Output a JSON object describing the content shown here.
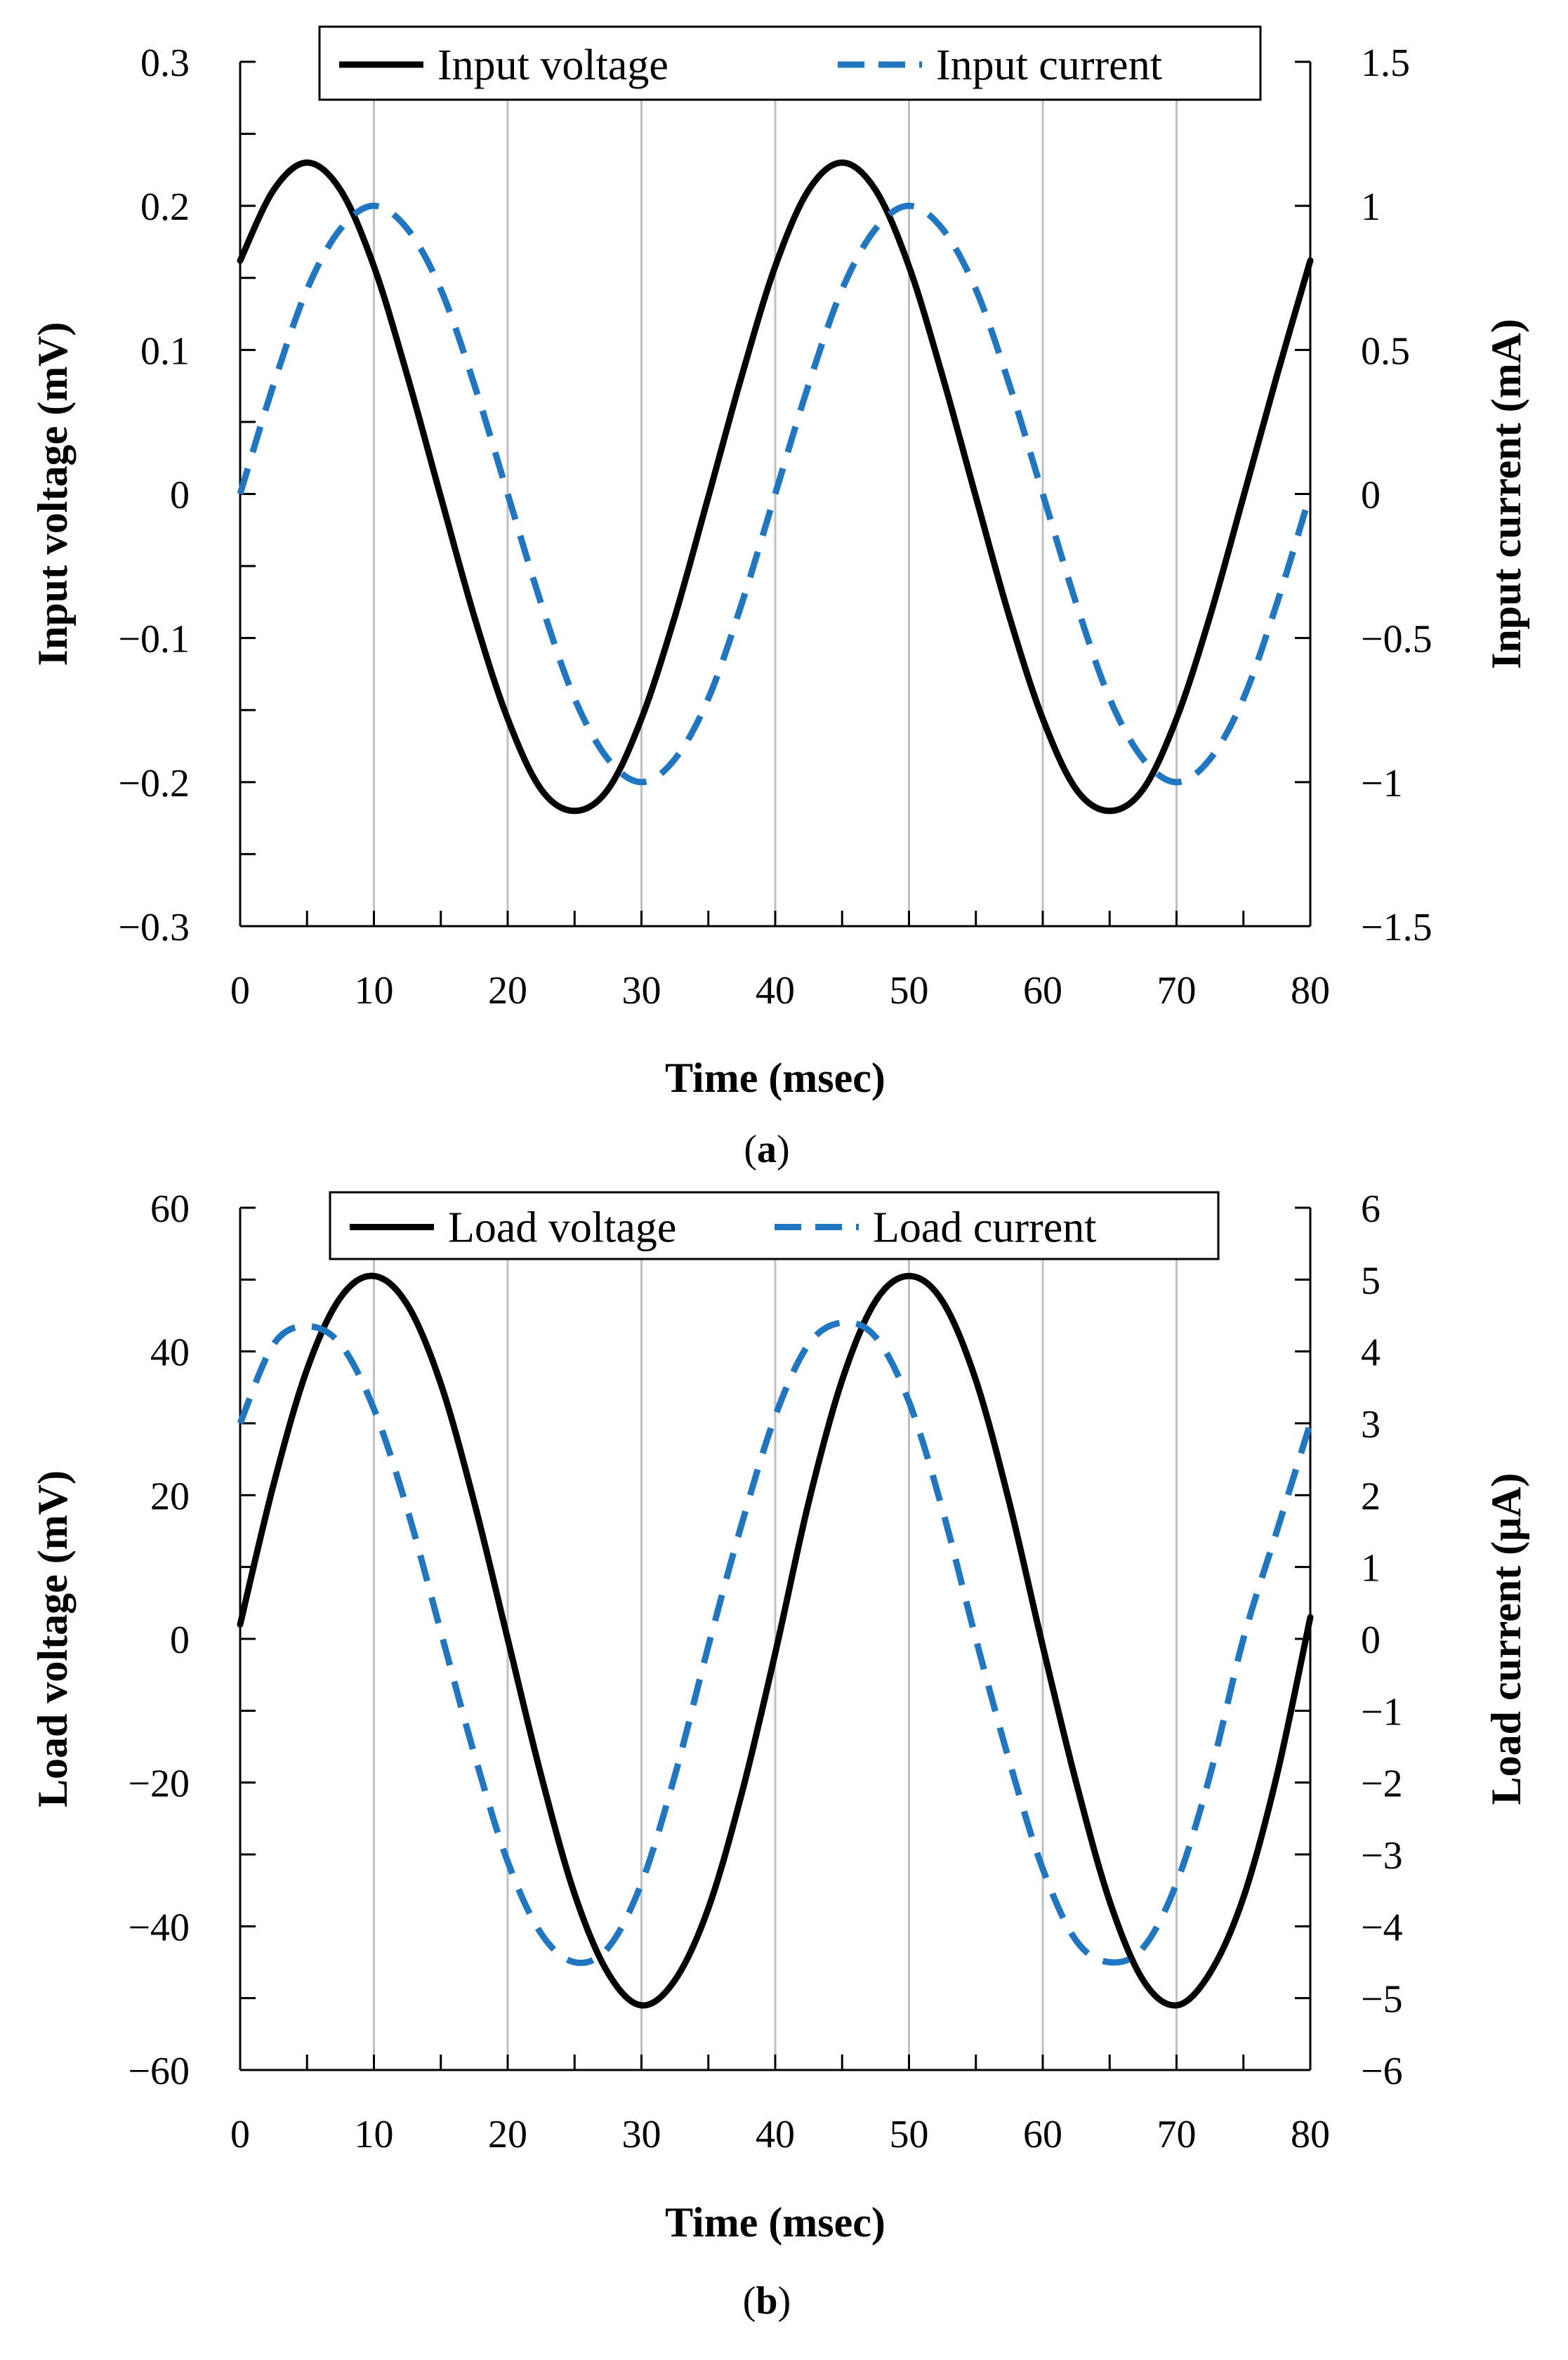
{
  "chart_data": [
    {
      "type": "line",
      "panel": "a",
      "caption_open": "(",
      "caption_letter": "a",
      "caption_close": ")",
      "xlabel": "Time (msec)",
      "ylabel_left": "Input voltage (mV)",
      "ylabel_right": "Input current (mA)",
      "xlim": [
        0,
        80
      ],
      "ylim_left": [
        -0.3,
        0.3
      ],
      "ylim_right": [
        -1.5,
        1.5
      ],
      "x_ticks": [
        "0",
        "10",
        "20",
        "30",
        "40",
        "50",
        "60",
        "70",
        "80"
      ],
      "y_left_ticks": [
        "0.3",
        "0.2",
        "0.1",
        "0",
        "−0.1",
        "−0.2",
        "−0.3"
      ],
      "y_right_ticks": [
        "1.5",
        "1",
        "0.5",
        "0",
        "−0.5",
        "−1",
        "−1.5"
      ],
      "grid": "vertical",
      "legend_position": "top",
      "series": [
        {
          "name": "Input voltage",
          "style": "solid",
          "color": "#000000",
          "axis": "left",
          "x": [
            0,
            2.5,
            5,
            7.5,
            10,
            12.5,
            15,
            17.5,
            20,
            22.5,
            25,
            27.5,
            30,
            32.5,
            35,
            37.5,
            40,
            42.5,
            45,
            47.5,
            50,
            52.5,
            55,
            57.5,
            60,
            62.5,
            65,
            67.5,
            70,
            72.5,
            75,
            77.5,
            80
          ],
          "values": [
            0.162,
            0.211,
            0.23,
            0.211,
            0.158,
            0.082,
            -0.002,
            -0.085,
            -0.156,
            -0.205,
            -0.22,
            -0.205,
            -0.156,
            -0.085,
            -0.002,
            0.082,
            0.158,
            0.211,
            0.23,
            0.211,
            0.158,
            0.082,
            -0.002,
            -0.085,
            -0.156,
            -0.205,
            -0.22,
            -0.205,
            -0.156,
            -0.085,
            -0.002,
            0.082,
            0.162
          ]
        },
        {
          "name": "Input current",
          "style": "dashed",
          "color": "#1f77c4",
          "axis": "right",
          "x": [
            0,
            2.5,
            5,
            7.5,
            10,
            12.5,
            15,
            17.5,
            20,
            22.5,
            25,
            27.5,
            30,
            32.5,
            35,
            37.5,
            40,
            42.5,
            45,
            47.5,
            50,
            52.5,
            55,
            57.5,
            60,
            62.5,
            65,
            67.5,
            70,
            72.5,
            75,
            77.5,
            80
          ],
          "values": [
            0.0,
            0.38,
            0.71,
            0.92,
            1.0,
            0.92,
            0.71,
            0.38,
            0.0,
            -0.38,
            -0.71,
            -0.92,
            -1.0,
            -0.92,
            -0.71,
            -0.38,
            0.0,
            0.38,
            0.71,
            0.92,
            1.0,
            0.92,
            0.71,
            0.38,
            0.0,
            -0.38,
            -0.71,
            -0.92,
            -1.0,
            -0.92,
            -0.71,
            -0.38,
            0.0
          ]
        }
      ]
    },
    {
      "type": "line",
      "panel": "b",
      "caption_open": "(",
      "caption_letter": "b",
      "caption_close": ")",
      "xlabel": "Time (msec)",
      "ylabel_left": "Load voltage (mV)",
      "ylabel_right": "Load current (μA)",
      "xlim": [
        0,
        80
      ],
      "ylim_left": [
        -60,
        60
      ],
      "ylim_right": [
        -6,
        6
      ],
      "x_ticks": [
        "0",
        "10",
        "20",
        "30",
        "40",
        "50",
        "60",
        "70",
        "80"
      ],
      "y_left_ticks": [
        "60",
        "40",
        "20",
        "0",
        "−20",
        "−40",
        "−60"
      ],
      "y_right_ticks": [
        "6",
        "5",
        "4",
        "3",
        "2",
        "1",
        "0",
        "−1",
        "−2",
        "−3",
        "−4",
        "−5",
        "−6"
      ],
      "grid": "vertical",
      "legend_position": "top",
      "series": [
        {
          "name": "Load voltage",
          "style": "solid",
          "color": "#000000",
          "axis": "left",
          "x": [
            0,
            2.5,
            5,
            7.5,
            10,
            12.5,
            15,
            17.5,
            20,
            22.5,
            25,
            27.5,
            30,
            32.5,
            35,
            37.5,
            40,
            42.5,
            45,
            47.5,
            50,
            52.5,
            55,
            57.5,
            60,
            62.5,
            65,
            67.5,
            70,
            72.5,
            75,
            77.5,
            80
          ],
          "values": [
            2,
            21.5,
            37.5,
            47.5,
            50.5,
            46.5,
            35.5,
            19,
            0,
            -19,
            -35.5,
            -46.5,
            -51,
            -47.5,
            -37.5,
            -21.5,
            -2,
            19,
            36,
            47,
            50.5,
            47,
            36,
            19,
            -1,
            -20,
            -36.5,
            -47.5,
            -51,
            -46.5,
            -36,
            -19,
            3
          ]
        },
        {
          "name": "Load current",
          "style": "dashed",
          "color": "#1f77c4",
          "axis": "right",
          "x": [
            0,
            2.5,
            5,
            7.5,
            10,
            12.5,
            15,
            17.5,
            20,
            22.5,
            25,
            27.5,
            30,
            32.5,
            35,
            37.5,
            40,
            42.5,
            45,
            47.5,
            50,
            52.5,
            55,
            57.5,
            60,
            62.5,
            65,
            67.5,
            70,
            72.5,
            75,
            77.5,
            80
          ],
          "values": [
            3.0,
            4.1,
            4.35,
            4.1,
            3.2,
            1.8,
            0.1,
            -1.6,
            -3.1,
            -4.1,
            -4.5,
            -4.3,
            -3.4,
            -1.9,
            -0.1,
            1.6,
            3.1,
            4.1,
            4.4,
            4.2,
            3.3,
            1.8,
            0.0,
            -1.7,
            -3.2,
            -4.2,
            -4.5,
            -4.3,
            -3.4,
            -1.9,
            0.0,
            1.5,
            3.0
          ]
        }
      ]
    }
  ],
  "colors": {
    "voltage": "#000000",
    "current": "#1f77c4",
    "grid": "#c0c0c0"
  }
}
